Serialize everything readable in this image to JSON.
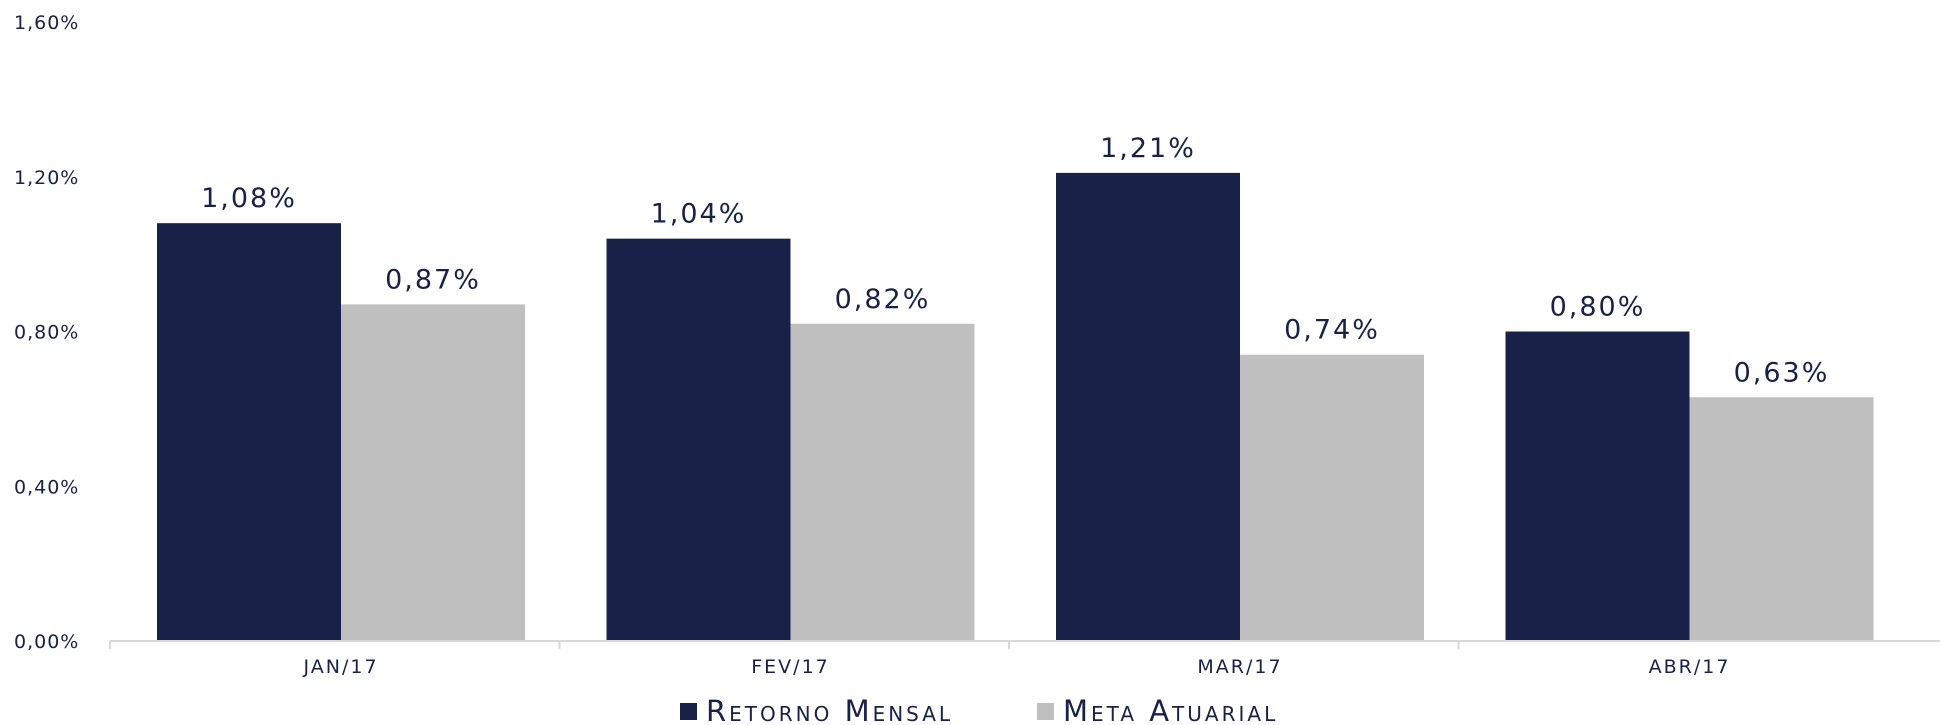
{
  "chart_data": {
    "type": "bar",
    "categories": [
      "JAN/17",
      "FEV/17",
      "MAR/17",
      "ABR/17"
    ],
    "series": [
      {
        "name": "Retorno Mensal",
        "color": "#1a2148",
        "values": [
          1.08,
          1.04,
          1.21,
          0.8
        ],
        "labels": [
          "1,08%",
          "1,04%",
          "1,21%",
          "0,80%"
        ]
      },
      {
        "name": "Meta Atuarial",
        "color": "#bfbfbf",
        "values": [
          0.87,
          0.82,
          0.74,
          0.63
        ],
        "labels": [
          "0,87%",
          "0,82%",
          "0,74%",
          "0,63%"
        ]
      }
    ],
    "ylim": [
      0,
      1.6
    ],
    "yticks": [
      0,
      0.4,
      0.8,
      1.2,
      1.6
    ],
    "ytick_labels": [
      "0,00%",
      "0,40%",
      "0,80%",
      "1,20%",
      "1,60%"
    ],
    "grid": false,
    "legend": "bottom",
    "title": "",
    "xlabel": "",
    "ylabel": ""
  }
}
